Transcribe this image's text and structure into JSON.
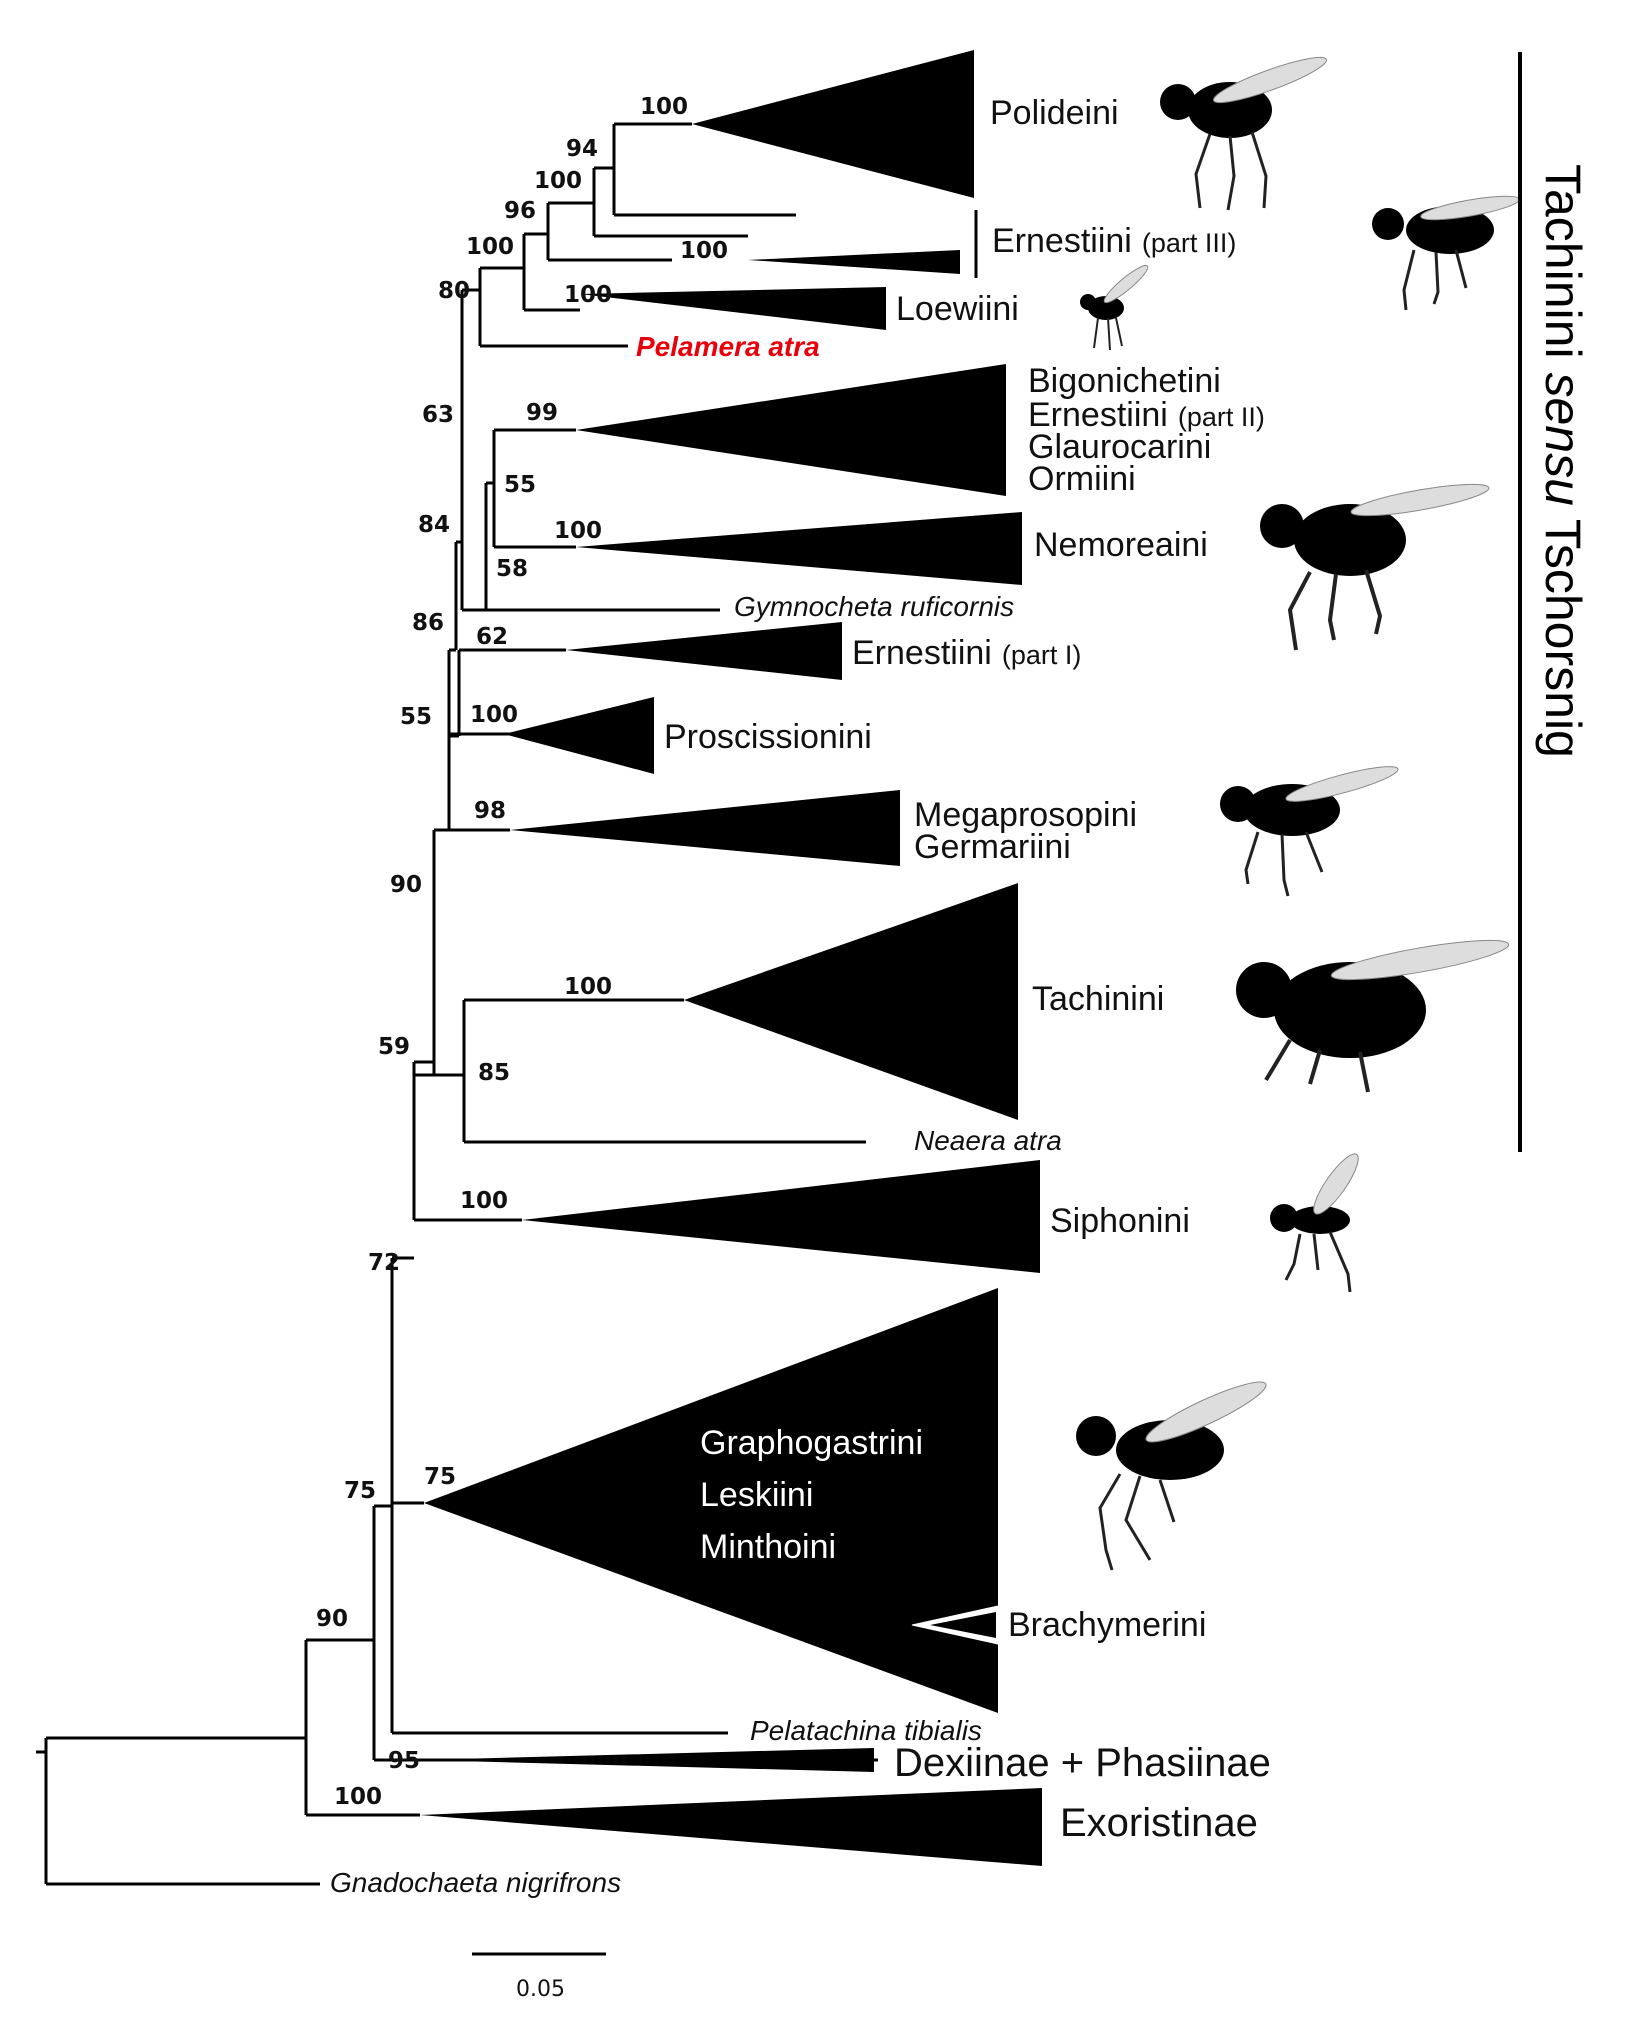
{
  "colors": {
    "highlight": "#e8000b",
    "ink": "#000000",
    "background": "#ffffff"
  },
  "bracket": {
    "prefix": "Tachinini ",
    "italic": "sensu",
    "suffix": " Tschorsnig"
  },
  "scale_bar": {
    "label": "0.05"
  },
  "clades": {
    "polideini": "Polideini",
    "ernestiini_3": "Ernestiini",
    "ernestiini_3_part": "(part III)",
    "loewiini": "Loewiini",
    "bigonichetini": "Bigonichetini",
    "ernestiini_2": "Ernestiini",
    "ernestiini_2_part": "(part II)",
    "glaurocarini": "Glaurocarini",
    "ormiini": "Ormiini",
    "nemoreaini": "Nemoreaini",
    "ernestiini_1": "Ernestiini",
    "ernestiini_1_part": "(part I)",
    "proscissionini": "Proscissionini",
    "megaprosopini": "Megaprosopini",
    "germariini": "Germariini",
    "tachinini": "Tachinini",
    "siphonini": "Siphonini",
    "graphogastrini": "Graphogastrini",
    "leskiini": "Leskiini",
    "minthoini": "Minthoini",
    "brachymerini": "Brachymerini",
    "dexiinae_phasiinae": "Dexiinae + Phasiinae",
    "exoristinae": "Exoristinae"
  },
  "taxa": {
    "pelamera": "Pelamera atra",
    "gymnocheta": "Gymnocheta ruficornis",
    "neaera": "Neaera atra",
    "pelatachina": "Pelatachina tibialis",
    "gnadochaeta": "Gnadochaeta nigrifrons"
  },
  "support": {
    "polideini": "100",
    "n94": "94",
    "n100a": "100",
    "n96": "96",
    "ernestiini_3": "100",
    "n100b": "100",
    "loewiini": "100",
    "n80": "80",
    "n63": "63",
    "bigonichetini": "99",
    "n55a": "55",
    "nemoreaini": "100",
    "n58": "58",
    "n84": "84",
    "n86": "86",
    "ernestiini_1": "62",
    "n55b": "55",
    "proscissionini": "100",
    "megaprosopini": "98",
    "n90a": "90",
    "tachinini": "100",
    "n85": "85",
    "n59": "59",
    "siphonini": "100",
    "n72": "72",
    "n75a": "75",
    "n75b": "75",
    "n90b": "90",
    "n95": "95",
    "exoristinae": "100"
  }
}
